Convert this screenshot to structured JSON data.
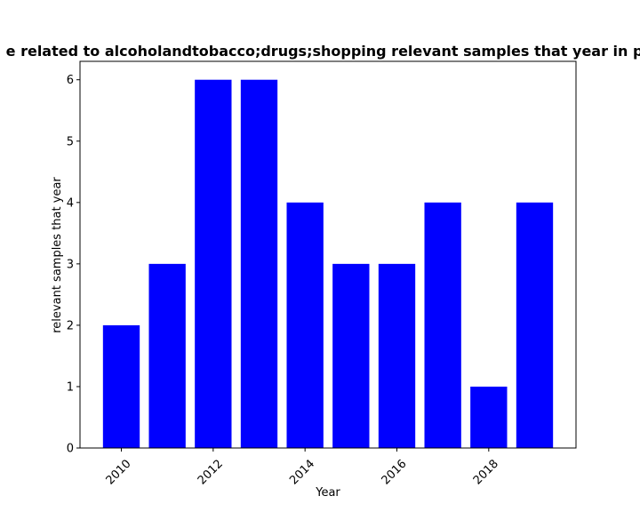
{
  "chart_data": {
    "type": "bar",
    "title": "e related to alcoholandtobacco;drugs;shopping relevant samples that year in pr",
    "xlabel": "Year",
    "ylabel": "relevant samples that year",
    "categories": [
      2010,
      2011,
      2012,
      2013,
      2014,
      2015,
      2016,
      2017,
      2018,
      2019
    ],
    "values": [
      2,
      3,
      6,
      6,
      4,
      3,
      3,
      4,
      1,
      4
    ],
    "x_ticks": [
      "2010",
      "2012",
      "2014",
      "2016",
      "2018"
    ],
    "y_ticks": [
      "0",
      "1",
      "2",
      "3",
      "4",
      "5",
      "6"
    ],
    "ylim": [
      0,
      6.3
    ],
    "xlim": [
      2009.1,
      2019.9
    ],
    "bar_color": "#0000ff",
    "grid": false,
    "legend": "none"
  }
}
